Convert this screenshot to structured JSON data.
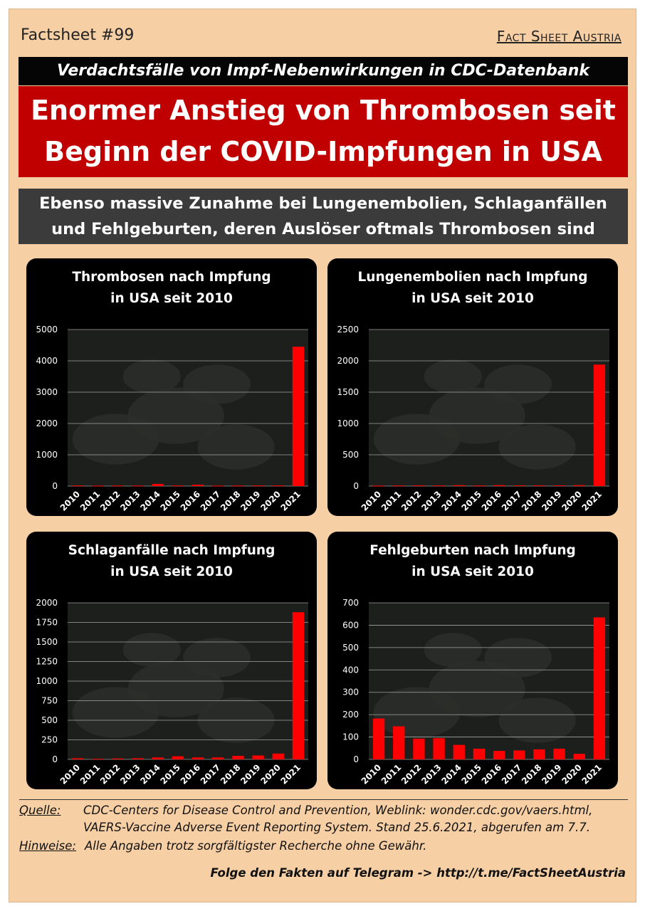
{
  "header": {
    "factsheet_number": "Factsheet #99",
    "brand": "Fact Sheet Austria"
  },
  "subtitle": "Verdachtsfälle von Impf-Nebenwirkungen in CDC-Datenbank",
  "headline": {
    "line1": "Enormer Anstieg von Thrombosen seit",
    "line2": "Beginn der COVID-Impfungen in USA"
  },
  "tagline": {
    "line1": "Ebenso massive Zunahme bei Lungenembolien, Schlaganfällen",
    "line2": "und Fehlgeburten, deren Auslöser oftmals Thrombosen sind"
  },
  "colors": {
    "bar": "#ff0000",
    "headline_bg": "#c00000",
    "page_bg": "#f7cfa5",
    "chart_bg": "#000000"
  },
  "chart_data": [
    {
      "type": "bar",
      "title_line1": "Thrombosen nach Impfung",
      "title_line2": "in USA seit 2010",
      "categories": [
        "2010",
        "2011",
        "2012",
        "2013",
        "2014",
        "2015",
        "2016",
        "2017",
        "2018",
        "2019",
        "2020",
        "2021"
      ],
      "values": [
        20,
        15,
        18,
        16,
        70,
        20,
        45,
        15,
        18,
        20,
        20,
        4450
      ],
      "ylim": [
        0,
        5000
      ],
      "yticks": [
        0,
        1000,
        2000,
        3000,
        4000,
        5000
      ],
      "grid": true
    },
    {
      "type": "bar",
      "title_line1": "Lungenembolien nach Impfung",
      "title_line2": "in USA seit 2010",
      "categories": [
        "2010",
        "2011",
        "2012",
        "2013",
        "2014",
        "2015",
        "2016",
        "2017",
        "2018",
        "2019",
        "2020",
        "2021"
      ],
      "values": [
        8,
        10,
        12,
        10,
        15,
        10,
        15,
        12,
        12,
        12,
        15,
        1940
      ],
      "ylim": [
        0,
        2500
      ],
      "yticks": [
        0,
        500,
        1000,
        1500,
        2000,
        2500
      ],
      "grid": true
    },
    {
      "type": "bar",
      "title_line1": "Schlaganfälle nach Impfung",
      "title_line2": "in USA seit 2010",
      "categories": [
        "2010",
        "2011",
        "2012",
        "2013",
        "2014",
        "2015",
        "2016",
        "2017",
        "2018",
        "2019",
        "2020",
        "2021"
      ],
      "values": [
        15,
        8,
        12,
        15,
        25,
        40,
        25,
        25,
        45,
        50,
        75,
        1880
      ],
      "ylim": [
        0,
        2000
      ],
      "yticks": [
        0,
        250,
        500,
        750,
        1000,
        1250,
        1500,
        1750,
        2000
      ],
      "grid": true
    },
    {
      "type": "bar",
      "title_line1": "Fehlgeburten nach Impfung",
      "title_line2": "in USA seit 2010",
      "categories": [
        "2010",
        "2011",
        "2012",
        "2013",
        "2014",
        "2015",
        "2016",
        "2017",
        "2018",
        "2019",
        "2020",
        "2021"
      ],
      "values": [
        183,
        148,
        93,
        95,
        65,
        48,
        38,
        40,
        45,
        48,
        25,
        635
      ],
      "ylim": [
        0,
        700
      ],
      "yticks": [
        0,
        100,
        200,
        300,
        400,
        500,
        600,
        700
      ],
      "grid": true
    }
  ],
  "sources": {
    "quelle_label": "Quelle:",
    "quelle_line1": "CDC-Centers for Disease Control and Prevention, Weblink: wonder.cdc.gov/vaers.html,",
    "quelle_line2": "VAERS-Vaccine Adverse Event Reporting System. Stand 25.6.2021, abgerufen am 7.7.",
    "hinweise_label": "Hinweise:",
    "hinweise_text": "Alle Angaben trotz sorgfältigster Recherche ohne Gewähr."
  },
  "footer": {
    "follow_text": "Folge den Fakten auf Telegram  ->  http://t.me/FactSheetAustria"
  }
}
